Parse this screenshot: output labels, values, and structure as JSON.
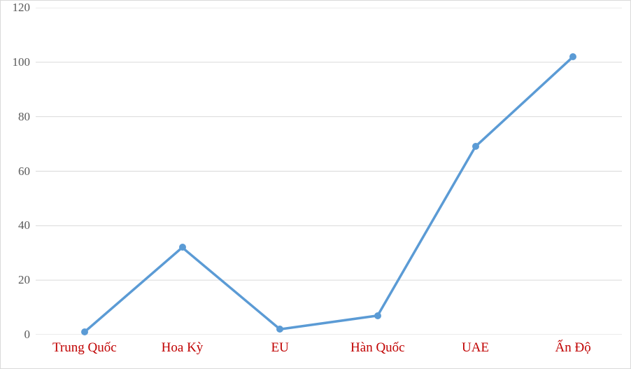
{
  "chart": {
    "type": "line",
    "background_color": "#ffffff",
    "border_color": "#d9d9d9",
    "grid_color": "#d9d9d9",
    "axis_label_color": "#595959",
    "category_label_color": "#c00000",
    "series_color": "#5b9bd5",
    "marker_fill": "#5b9bd5",
    "marker_radius": 5,
    "line_width": 3.5,
    "ytick_fontsize": 17,
    "xcat_fontsize": 19,
    "ylim": [
      0,
      120
    ],
    "ytick_step": 20,
    "yticks": [
      0,
      20,
      40,
      60,
      80,
      100,
      120
    ],
    "categories": [
      "Trung Quốc",
      "Hoa Kỳ",
      "EU",
      "Hàn Quốc",
      "UAE",
      "Ấn Độ"
    ],
    "values": [
      1,
      32,
      2,
      7,
      69,
      102
    ]
  }
}
